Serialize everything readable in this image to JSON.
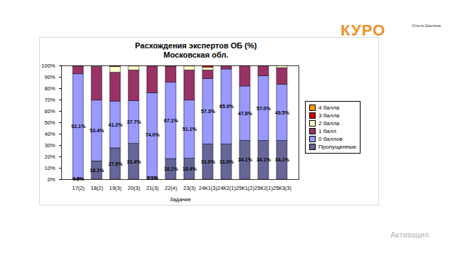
{
  "chart_data": {
    "type": "bar",
    "stacked": true,
    "title": "Расхождения экспертов ОБ (%)",
    "subtitle": "Московская обл.",
    "x_label": "Задание",
    "categories": [
      "17(2)",
      "18(2)",
      "19(3)",
      "20(3)",
      "21(3)",
      "22(4)",
      "23(3)",
      "24К1(3)",
      "24К2(1)",
      "25К1(2)",
      "25К2(1)",
      "25К3(3)"
    ],
    "series": [
      {
        "name": "Пропущенные",
        "color": "#666699",
        "data_labels": true,
        "values": [
          0.5,
          16.1,
          27.5,
          31.4,
          2.1,
          18.1,
          18.4,
          31.0,
          31.0,
          34.1,
          34.1,
          34.1
        ],
        "value_labels": [
          "0.5%",
          "16.1%",
          "27.5%",
          "31.4%",
          "2.1%",
          "18.1%",
          "18.4%",
          "31.0%",
          "31.0%",
          "34.1%",
          "34.1%",
          "34.1%"
        ]
      },
      {
        "name": "0 баллов",
        "color": "#9999ff",
        "data_labels": true,
        "values": [
          92.1,
          53.4,
          41.2,
          37.7,
          74.0,
          67.1,
          51.1,
          57.3,
          65.9,
          47.8,
          57.0,
          49.5
        ],
        "value_labels": [
          "92.1%",
          "53.4%",
          "41.2%",
          "37.7%",
          "74.0%",
          "67.1%",
          "51.1%",
          "57.3%",
          "65.9%",
          "47.8%",
          "57.0%",
          "49.5%"
        ]
      },
      {
        "name": "1 балл",
        "color": "#993366",
        "data_labels": false,
        "values": [
          6.9,
          29.5,
          25.3,
          26.9,
          23.9,
          14.1,
          26.5,
          7.7,
          3.1,
          18.1,
          8.9,
          14.4
        ]
      },
      {
        "name": "2 балла",
        "color": "#ffffcc",
        "data_labels": false,
        "values": [
          0.5,
          1.0,
          5.0,
          3.5,
          0,
          0.7,
          3.5,
          2.5,
          0,
          0,
          0,
          2.0
        ]
      },
      {
        "name": "3 балла",
        "color": "#cc0000",
        "data_labels": false,
        "values": [
          0,
          0,
          1.0,
          0.5,
          0,
          0,
          0.5,
          1.5,
          0,
          0,
          0,
          0
        ]
      },
      {
        "name": "4 балла",
        "color": "#ff9900",
        "data_labels": false,
        "values": [
          0,
          0,
          0,
          0,
          0,
          0,
          0,
          0,
          0,
          0,
          0,
          0
        ]
      }
    ],
    "ylim": [
      0,
      100
    ],
    "yticks": [
      {
        "value": 0,
        "label": "0%"
      },
      {
        "value": 10,
        "label": "10%"
      },
      {
        "value": 20,
        "label": "20%"
      },
      {
        "value": 30,
        "label": "30%"
      },
      {
        "value": 40,
        "label": "40%"
      },
      {
        "value": 50,
        "label": "50%"
      },
      {
        "value": 60,
        "label": "60%"
      },
      {
        "value": 70,
        "label": "70%"
      },
      {
        "value": 80,
        "label": "80%"
      },
      {
        "value": 90,
        "label": "90%"
      },
      {
        "value": 100,
        "label": "100%"
      }
    ],
    "grid": false,
    "legend": "right",
    "annotations": [
      "КУРО",
      "Ольга Шалина",
      "Активация"
    ]
  }
}
